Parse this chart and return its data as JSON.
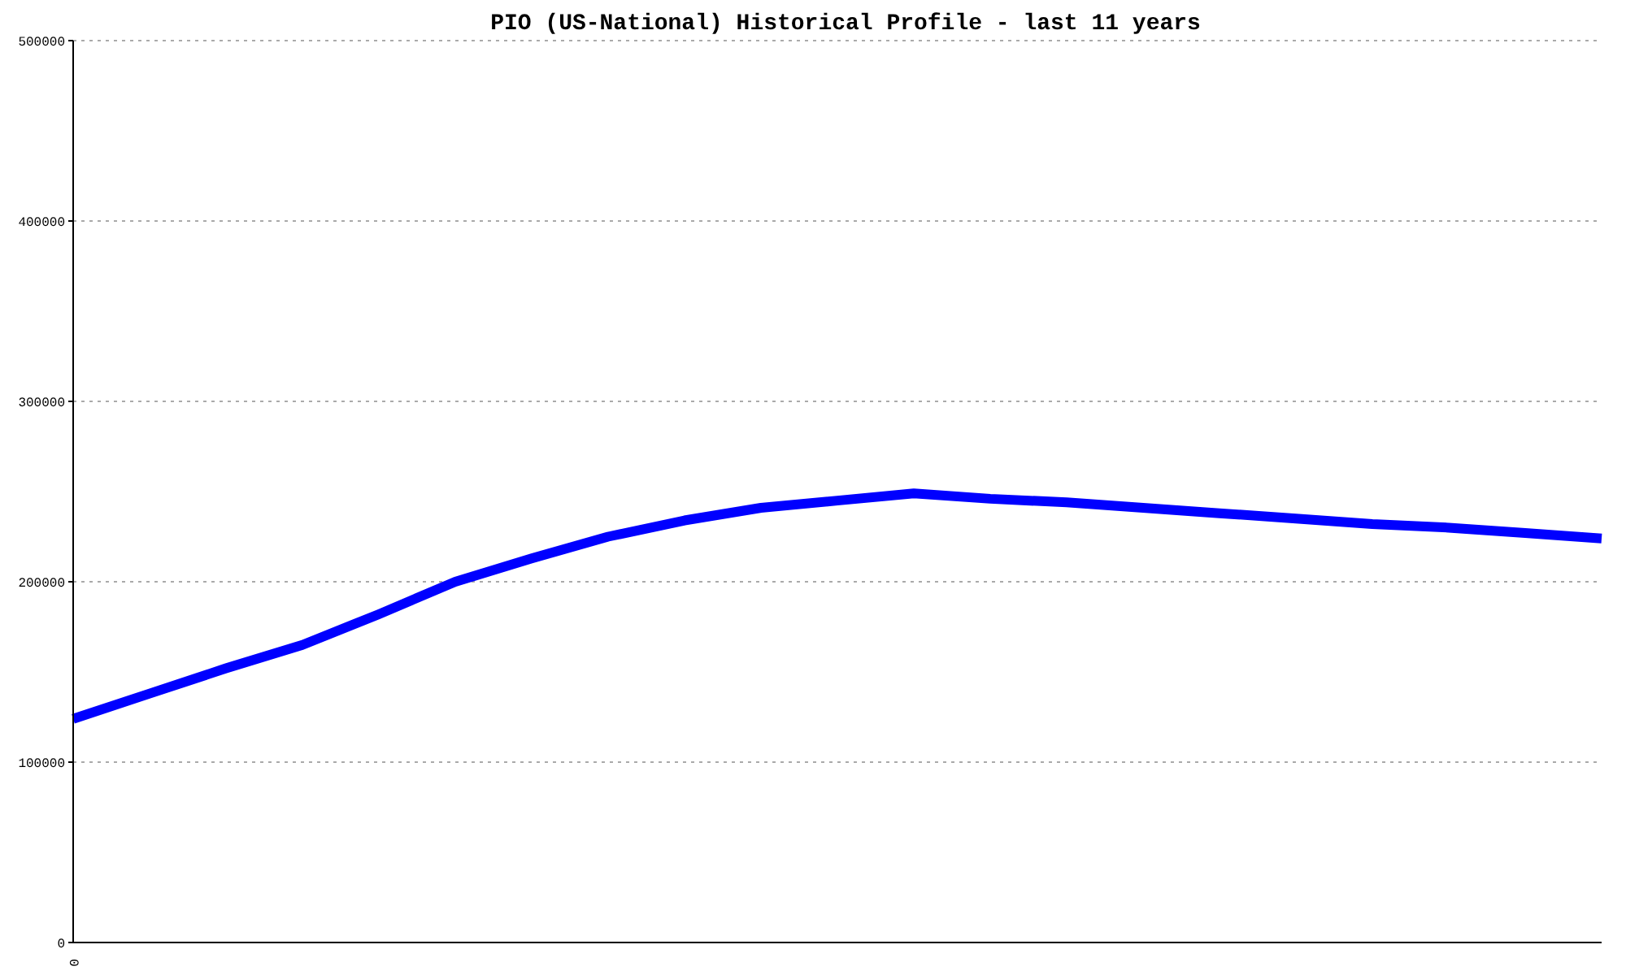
{
  "chart_data": {
    "type": "line",
    "title": "PIO (US-National) Historical Profile - last 11 years",
    "categories": [
      "0",
      null,
      null,
      null,
      null,
      null,
      null,
      null,
      null,
      null,
      null,
      null,
      null,
      null,
      null,
      null,
      null,
      null,
      null,
      null,
      null
    ],
    "values": [
      124000,
      138000,
      152000,
      165000,
      182000,
      200000,
      213000,
      225000,
      234000,
      241000,
      245000,
      249000,
      246000,
      244000,
      241000,
      238000,
      235000,
      232000,
      230000,
      227000,
      224000
    ],
    "color": "#0000ff",
    "ylim": [
      0,
      500000
    ],
    "yticks": [
      0,
      100000,
      200000,
      300000,
      400000,
      500000
    ],
    "grid": "y",
    "marker": "none",
    "line_style": "solid"
  }
}
